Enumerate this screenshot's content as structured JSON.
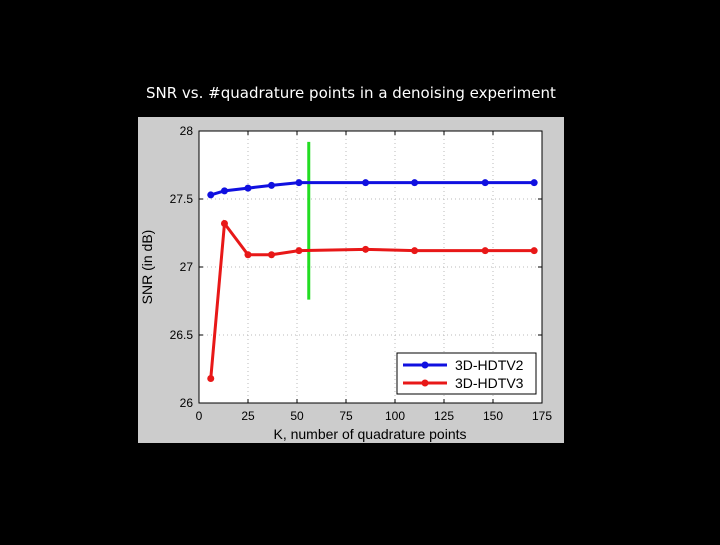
{
  "slide": {
    "title": "SNR vs. #quadrature points in a denoising experiment"
  },
  "colors": {
    "background": "#000000",
    "figure": "#cccccc",
    "axes_bg": "#ffffff",
    "series_1": "#1010e0",
    "series_2": "#e81818",
    "marker_line": "#22dd22"
  },
  "chart_data": {
    "type": "line",
    "title": "",
    "xlabel": "K, number of quadrature points",
    "ylabel": "SNR (in dB)",
    "xlim": [
      0,
      175
    ],
    "ylim": [
      26,
      28
    ],
    "xticks": [
      0,
      25,
      50,
      75,
      100,
      125,
      150,
      175
    ],
    "yticks": [
      26,
      26.5,
      27,
      27.5,
      28
    ],
    "grid": true,
    "legend_position": "bottom-right",
    "series": [
      {
        "name": "3D-HDTV2",
        "color": "#1010e0",
        "x": [
          6,
          13,
          25,
          37,
          51,
          85,
          110,
          146,
          171
        ],
        "y": [
          27.53,
          27.56,
          27.58,
          27.6,
          27.62,
          27.62,
          27.62,
          27.62,
          27.62
        ]
      },
      {
        "name": "3D-HDTV3",
        "color": "#e81818",
        "x": [
          6,
          13,
          25,
          37,
          51,
          85,
          110,
          146,
          171
        ],
        "y": [
          26.18,
          27.32,
          27.09,
          27.09,
          27.12,
          27.13,
          27.12,
          27.12,
          27.12
        ]
      }
    ],
    "vertical_marker": {
      "x": 56,
      "y_from": 26.76,
      "y_to": 27.92,
      "color": "#22dd22"
    }
  }
}
